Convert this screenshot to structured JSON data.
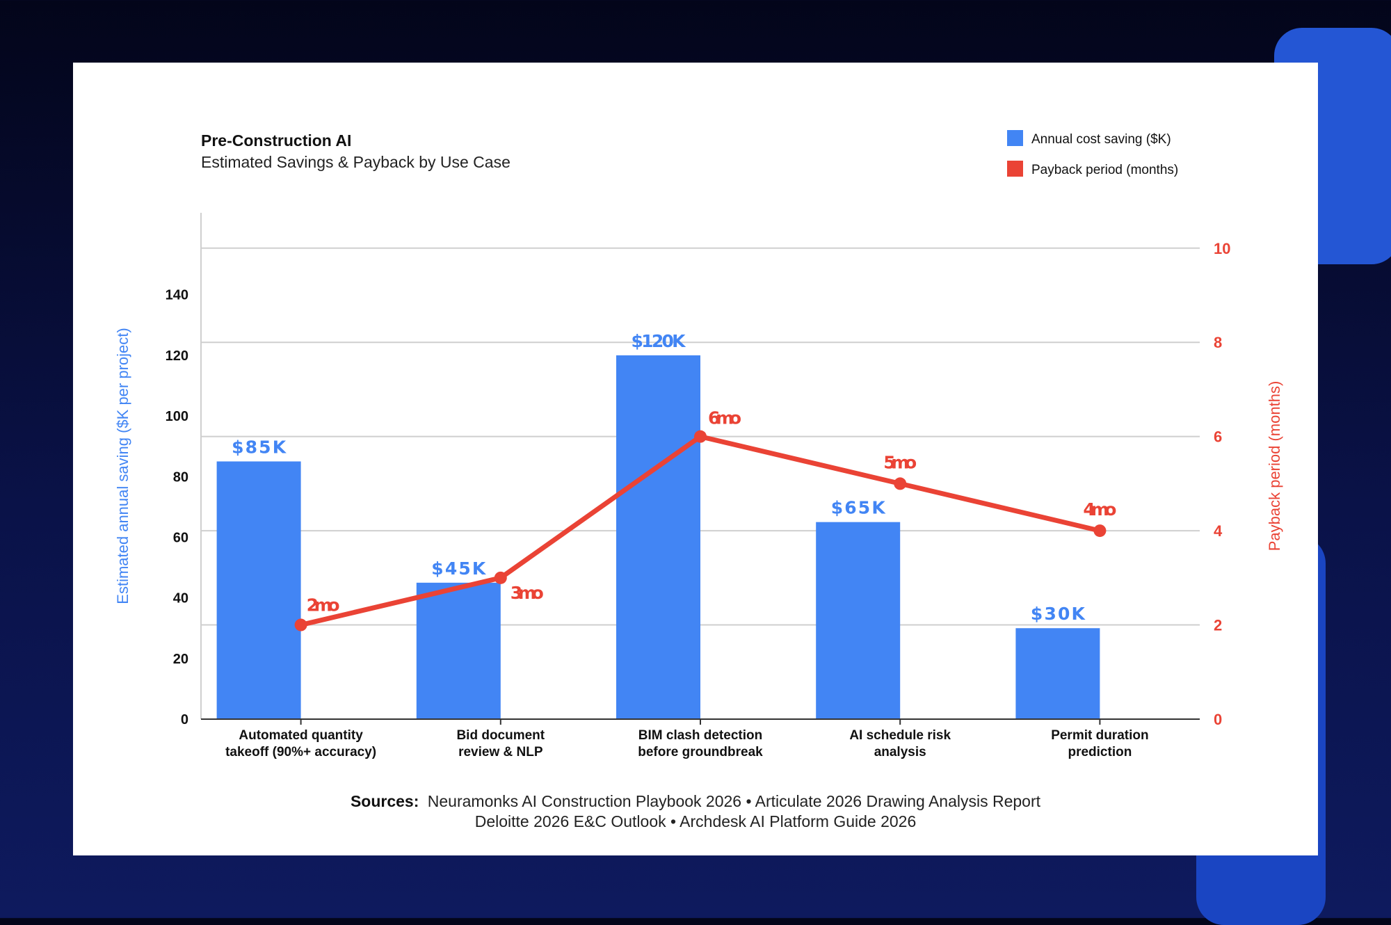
{
  "chart_data": {
    "type": "bar",
    "title": "Pre-Construction AI",
    "subtitle": "Estimated Savings & Payback by Use Case",
    "categories": [
      [
        "Automated quantity",
        "takeoff (90%+ accuracy)"
      ],
      [
        "Bid document",
        "review & NLP"
      ],
      [
        "BIM clash detection",
        "before groundbreak"
      ],
      [
        "AI schedule risk",
        "analysis"
      ],
      [
        "Permit duration",
        "prediction"
      ]
    ],
    "series": [
      {
        "name": "Annual cost saving ($K)",
        "type": "bar",
        "axis": "left",
        "color": "#4285f4",
        "values": [
          85,
          45,
          120,
          65,
          30
        ],
        "labels": [
          "$85K",
          "$45K",
          "$120K",
          "$65K",
          "$30K"
        ]
      },
      {
        "name": "Payback period (months)",
        "type": "line",
        "axis": "right",
        "color": "#ea4335",
        "values": [
          2,
          3,
          6,
          5,
          4
        ],
        "labels": [
          "2mo",
          "3mo",
          "6mo",
          "5mo",
          "4mo"
        ]
      }
    ],
    "ylabel": "Estimated annual saving ($K per project)",
    "ylabel_right": "Payback period (months)",
    "ylim": [
      0,
      167
    ],
    "ylim_right": [
      0,
      10.75
    ],
    "yticks": [
      0,
      20,
      40,
      60,
      80,
      100,
      120,
      140
    ],
    "yticks_right": [
      0,
      2,
      4,
      6,
      8,
      10
    ],
    "grid": true,
    "legend": "top-right"
  },
  "sources": {
    "label": "Sources:",
    "line1": "Neuramonks AI Construction Playbook 2026 • Articulate 2026 Drawing Analysis Report",
    "line2": "Deloitte 2026 E&C Outlook • Archdesk AI Platform Guide 2026"
  }
}
